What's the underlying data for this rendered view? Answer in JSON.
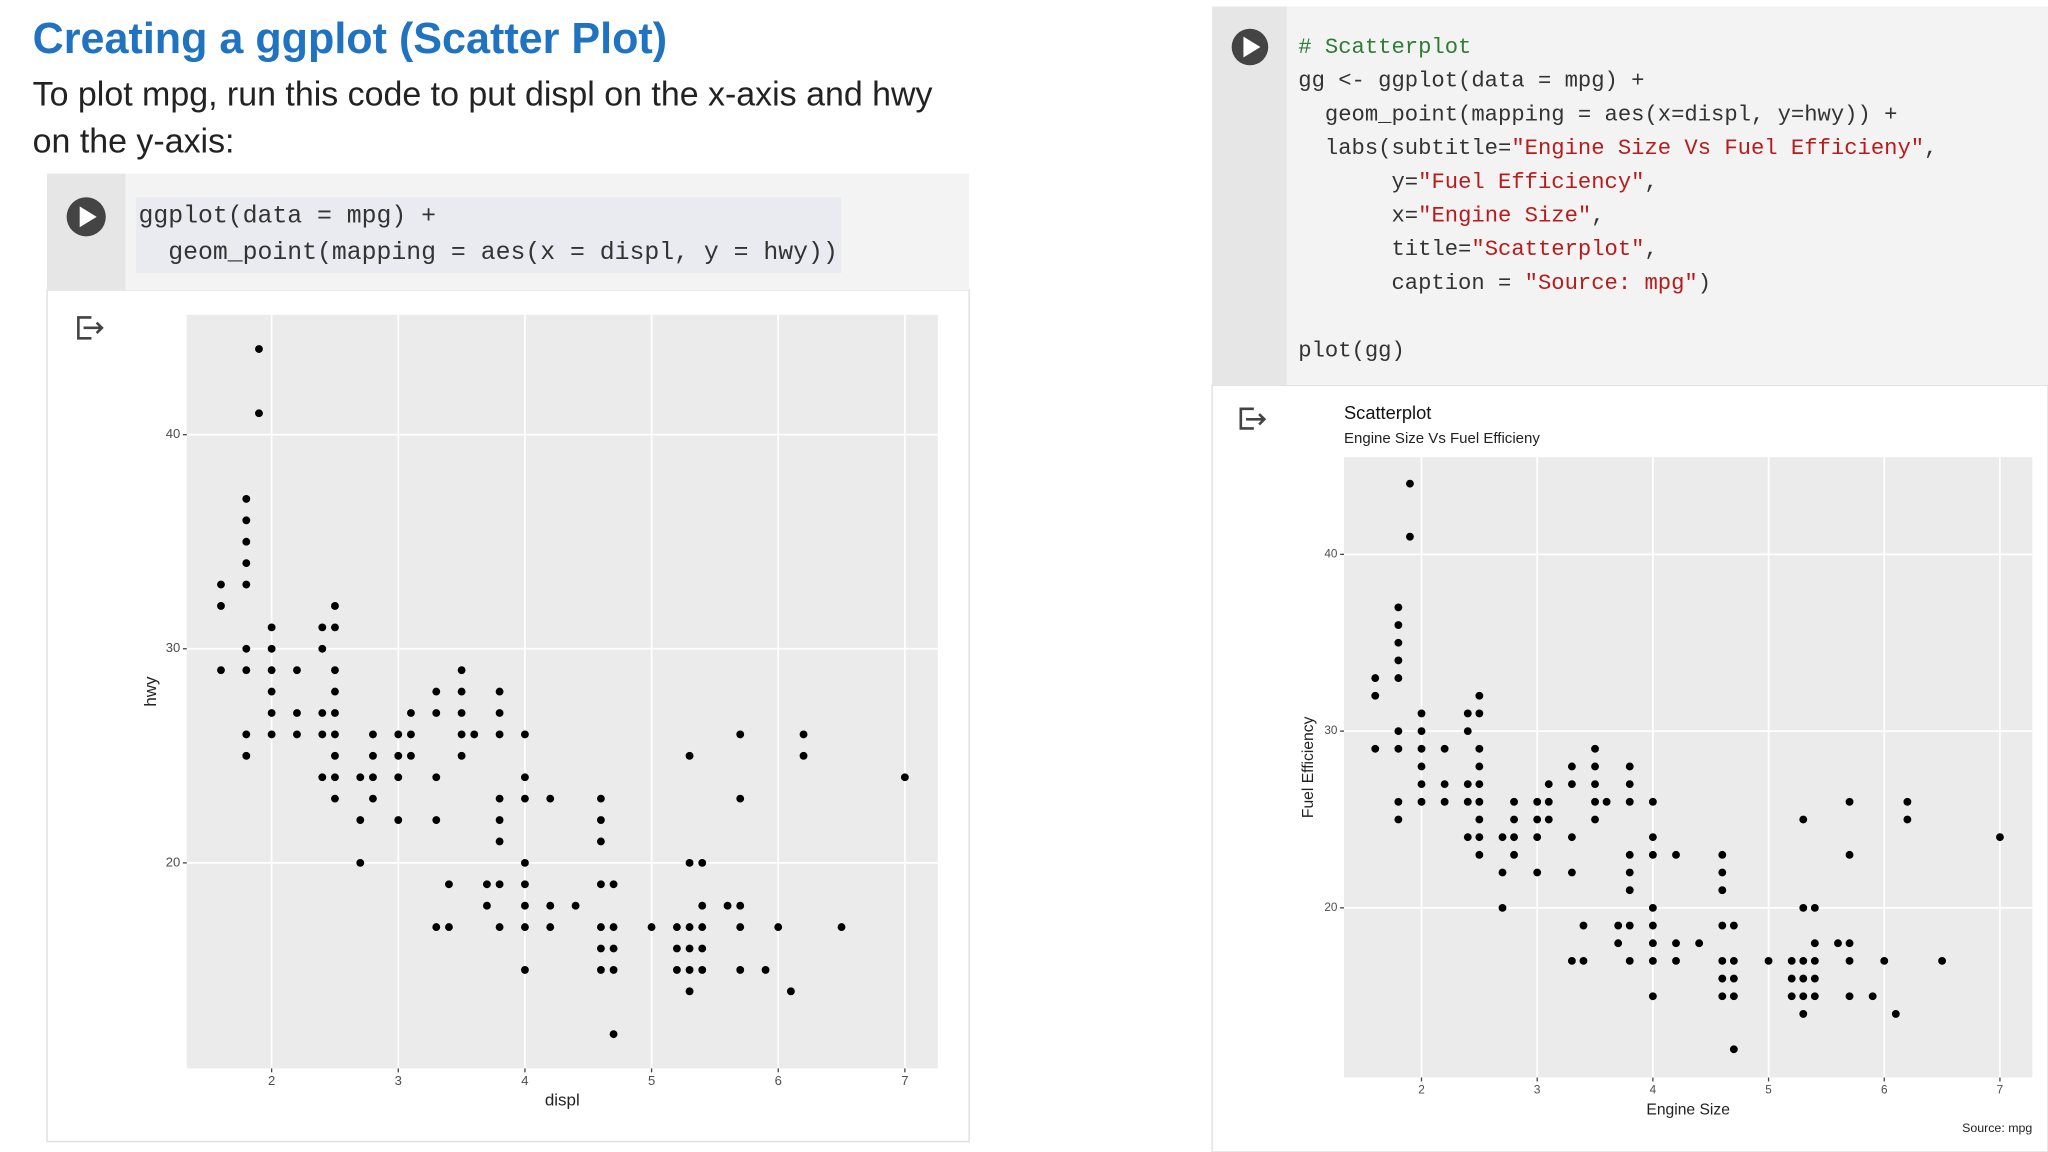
{
  "title": "Creating a ggplot (Scatter Plot)",
  "subtitle": [
    "To plot mpg, run this code to put displ on the x-axis and hwy",
    "on the y-axis:"
  ],
  "cells": [
    {
      "code": [
        [
          [
            {
              "text": "ggplot(data = mpg) +"
            }
          ],
          [
            {
              "text": "  geom_point(mapping = aes(x = displ, y = hwy))"
            }
          ]
        ]
      ]
    },
    {
      "code": [
        [
          [
            {
              "text": "# Scatterplot",
              "color": "#2e7d32"
            }
          ],
          [
            {
              "text": "gg <- ggplot(data = mpg) +"
            }
          ],
          [
            {
              "text": "  geom_point(mapping = aes(x=displ, y=hwy)) +"
            }
          ],
          [
            {
              "text": "  labs(subtitle="
            },
            {
              "text": "\"Engine Size Vs Fuel Efficieny\"",
              "color": "#b71c1c"
            },
            {
              "text": ","
            }
          ],
          [
            {
              "text": "       y="
            },
            {
              "text": "\"Fuel Efficiency\"",
              "color": "#b71c1c"
            },
            {
              "text": ","
            }
          ],
          [
            {
              "text": "       x="
            },
            {
              "text": "\"Engine Size\"",
              "color": "#b71c1c"
            },
            {
              "text": ","
            }
          ],
          [
            {
              "text": "       title="
            },
            {
              "text": "\"Scatterplot\"",
              "color": "#b71c1c"
            },
            {
              "text": ","
            }
          ],
          [
            {
              "text": "       caption = "
            },
            {
              "text": "\"Source: mpg\"",
              "color": "#b71c1c"
            },
            {
              "text": ")"
            }
          ]
        ],
        [
          [
            {
              "text": "plot(gg)"
            }
          ]
        ]
      ]
    }
  ],
  "chart_data": [
    {
      "type": "scatter",
      "x_label": "displ",
      "y_label": "hwy",
      "color": "#000000",
      "grid": true,
      "xlim": [
        1.33,
        7.26
      ],
      "ylim": [
        10.4,
        45.6
      ],
      "xticks": [
        2,
        3,
        4,
        5,
        6,
        7
      ],
      "yticks": [
        20,
        30,
        40
      ],
      "x": [
        1.6,
        1.6,
        1.6,
        1.8,
        1.8,
        1.8,
        1.8,
        1.8,
        1.8,
        1.8,
        1.8,
        1.8,
        1.9,
        1.9,
        2.0,
        2.0,
        2.0,
        2.0,
        2.0,
        2.0,
        2.2,
        2.2,
        2.2,
        2.4,
        2.4,
        2.4,
        2.4,
        2.4,
        2.5,
        2.5,
        2.5,
        2.5,
        2.5,
        2.5,
        2.5,
        2.5,
        2.5,
        2.7,
        2.7,
        2.7,
        2.8,
        2.8,
        2.8,
        2.8,
        3.0,
        3.0,
        3.0,
        3.0,
        3.1,
        3.1,
        3.1,
        3.3,
        3.3,
        3.3,
        3.3,
        3.3,
        3.4,
        3.4,
        3.5,
        3.5,
        3.5,
        3.5,
        3.5,
        3.6,
        3.7,
        3.7,
        3.8,
        3.8,
        3.8,
        3.8,
        3.8,
        3.8,
        3.8,
        3.8,
        4.0,
        4.0,
        4.0,
        4.0,
        4.0,
        4.0,
        4.0,
        4.0,
        4.2,
        4.2,
        4.2,
        4.4,
        4.6,
        4.6,
        4.6,
        4.6,
        4.6,
        4.6,
        4.6,
        4.7,
        4.7,
        4.7,
        4.7,
        4.7,
        5.0,
        5.2,
        5.2,
        5.2,
        5.3,
        5.3,
        5.3,
        5.3,
        5.3,
        5.3,
        5.4,
        5.4,
        5.4,
        5.4,
        5.4,
        5.6,
        5.7,
        5.7,
        5.7,
        5.7,
        5.7,
        5.9,
        6.0,
        6.1,
        6.2,
        6.2,
        6.5,
        7.0
      ],
      "y": [
        33,
        32,
        29,
        37,
        36,
        35,
        34,
        33,
        30,
        29,
        26,
        25,
        44,
        41,
        31,
        30,
        29,
        28,
        27,
        26,
        29,
        27,
        26,
        31,
        30,
        27,
        26,
        24,
        32,
        31,
        29,
        28,
        27,
        26,
        25,
        24,
        23,
        24,
        22,
        20,
        26,
        25,
        24,
        23,
        26,
        25,
        24,
        22,
        27,
        26,
        25,
        28,
        27,
        24,
        22,
        17,
        19,
        17,
        29,
        28,
        27,
        26,
        25,
        26,
        19,
        18,
        28,
        27,
        26,
        23,
        22,
        21,
        19,
        17,
        26,
        24,
        23,
        20,
        19,
        18,
        17,
        15,
        23,
        18,
        17,
        18,
        23,
        22,
        21,
        19,
        17,
        16,
        15,
        19,
        17,
        16,
        15,
        12,
        17,
        17,
        16,
        15,
        25,
        20,
        17,
        16,
        15,
        14,
        20,
        18,
        17,
        16,
        15,
        18,
        26,
        23,
        18,
        17,
        15,
        15,
        17,
        14,
        26,
        25,
        17,
        24
      ]
    },
    {
      "type": "scatter",
      "title": "Scatterplot",
      "subtitle": "Engine Size Vs Fuel Efficieny",
      "x_label": "Engine Size",
      "y_label": "Fuel Efficiency",
      "caption": "Source: mpg",
      "color": "#000000",
      "grid": true,
      "xlim": [
        1.33,
        7.28
      ],
      "ylim": [
        10.4,
        45.5
      ],
      "xticks": [
        2,
        3,
        4,
        5,
        6,
        7
      ],
      "yticks": [
        20,
        30,
        40
      ],
      "x": [
        1.6,
        1.6,
        1.6,
        1.8,
        1.8,
        1.8,
        1.8,
        1.8,
        1.8,
        1.8,
        1.8,
        1.8,
        1.9,
        1.9,
        2.0,
        2.0,
        2.0,
        2.0,
        2.0,
        2.0,
        2.2,
        2.2,
        2.2,
        2.4,
        2.4,
        2.4,
        2.4,
        2.4,
        2.5,
        2.5,
        2.5,
        2.5,
        2.5,
        2.5,
        2.5,
        2.5,
        2.5,
        2.7,
        2.7,
        2.7,
        2.8,
        2.8,
        2.8,
        2.8,
        3.0,
        3.0,
        3.0,
        3.0,
        3.1,
        3.1,
        3.1,
        3.3,
        3.3,
        3.3,
        3.3,
        3.3,
        3.4,
        3.4,
        3.5,
        3.5,
        3.5,
        3.5,
        3.5,
        3.6,
        3.7,
        3.7,
        3.8,
        3.8,
        3.8,
        3.8,
        3.8,
        3.8,
        3.8,
        3.8,
        4.0,
        4.0,
        4.0,
        4.0,
        4.0,
        4.0,
        4.0,
        4.0,
        4.2,
        4.2,
        4.2,
        4.4,
        4.6,
        4.6,
        4.6,
        4.6,
        4.6,
        4.6,
        4.6,
        4.7,
        4.7,
        4.7,
        4.7,
        4.7,
        5.0,
        5.2,
        5.2,
        5.2,
        5.3,
        5.3,
        5.3,
        5.3,
        5.3,
        5.3,
        5.4,
        5.4,
        5.4,
        5.4,
        5.4,
        5.6,
        5.7,
        5.7,
        5.7,
        5.7,
        5.7,
        5.9,
        6.0,
        6.1,
        6.2,
        6.2,
        6.5,
        7.0
      ],
      "y": [
        33,
        32,
        29,
        37,
        36,
        35,
        34,
        33,
        30,
        29,
        26,
        25,
        44,
        41,
        31,
        30,
        29,
        28,
        27,
        26,
        29,
        27,
        26,
        31,
        30,
        27,
        26,
        24,
        32,
        31,
        29,
        28,
        27,
        26,
        25,
        24,
        23,
        24,
        22,
        20,
        26,
        25,
        24,
        23,
        26,
        25,
        24,
        22,
        27,
        26,
        25,
        28,
        27,
        24,
        22,
        17,
        19,
        17,
        29,
        28,
        27,
        26,
        25,
        26,
        19,
        18,
        28,
        27,
        26,
        23,
        22,
        21,
        19,
        17,
        26,
        24,
        23,
        20,
        19,
        18,
        17,
        15,
        23,
        18,
        17,
        18,
        23,
        22,
        21,
        19,
        17,
        16,
        15,
        19,
        17,
        16,
        15,
        12,
        17,
        17,
        16,
        15,
        25,
        20,
        17,
        16,
        15,
        14,
        20,
        18,
        17,
        16,
        15,
        18,
        26,
        23,
        18,
        17,
        15,
        15,
        17,
        14,
        26,
        25,
        17,
        24
      ]
    }
  ]
}
